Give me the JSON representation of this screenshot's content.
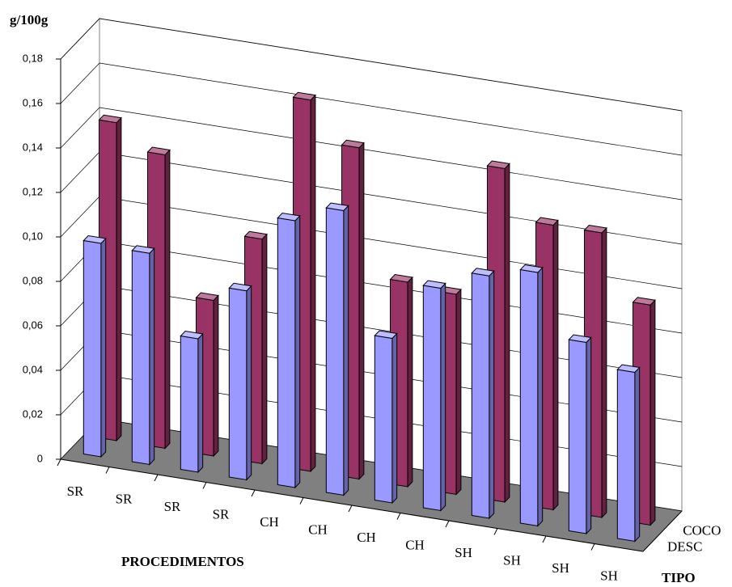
{
  "chart_data": {
    "type": "bar",
    "y_label": "g/100g",
    "x_label": "PROCEDIMENTOS",
    "z_label": "TIPO",
    "categories": [
      "SR",
      "SR",
      "SR",
      "SR",
      "CH",
      "CH",
      "CH",
      "CH",
      "SH",
      "SH",
      "SH",
      "SH"
    ],
    "series": [
      {
        "name": "DESC",
        "color": "#9999ff",
        "values": [
          0.096,
          0.095,
          0.06,
          0.085,
          0.12,
          0.128,
          0.074,
          0.1,
          0.109,
          0.114,
          0.086,
          0.076
        ]
      },
      {
        "name": "COCO",
        "color": "#993366",
        "values": [
          0.143,
          0.132,
          0.07,
          0.101,
          0.167,
          0.149,
          0.092,
          0.09,
          0.15,
          0.128,
          0.128,
          0.099
        ]
      }
    ],
    "ylim": [
      0,
      0.18
    ],
    "yticks": [
      0,
      {
        "value": 0.02,
        "label": "0,02"
      },
      {
        "value": 0.04,
        "label": "0,04"
      },
      {
        "value": 0.06,
        "label": "0,06"
      },
      {
        "value": 0.08,
        "label": "0,08"
      },
      {
        "value": 0.1,
        "label": "0,10"
      },
      {
        "value": 0.12,
        "label": "0,12"
      },
      {
        "value": 0.14,
        "label": "0,14"
      },
      {
        "value": 0.16,
        "label": "0,16"
      },
      {
        "value": 0.18,
        "label": "0,18"
      }
    ],
    "grid": true
  }
}
